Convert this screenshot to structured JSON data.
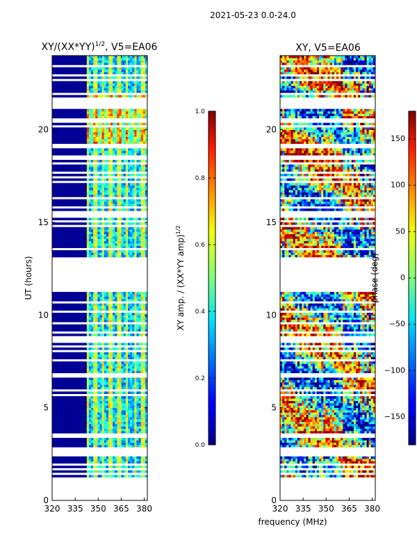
{
  "figure_title": "2021-05-23 0.0-24.0",
  "shared_xlabel": "frequency (MHz)",
  "chart_data": [
    {
      "type": "heatmap",
      "title": "XY/(XX*YY)",
      "title_exponent": "1/2",
      "title_suffix": ", V5=EA06",
      "xlabel": "frequency (MHz)",
      "ylabel": "UT (hours)",
      "xlim": [
        320,
        382
      ],
      "ylim": [
        0,
        24
      ],
      "xticks": [
        "320",
        "335",
        "350",
        "365",
        "380"
      ],
      "xtick_values": [
        320,
        335,
        350,
        365,
        380
      ],
      "yticks": [
        "0",
        "5",
        "10",
        "15",
        "20"
      ],
      "ytick_values": [
        0,
        5,
        10,
        15,
        20
      ],
      "data_freq_start": 342,
      "gaps_hours": [
        [
          0.0,
          1.2
        ],
        [
          11.3,
          12.7
        ]
      ],
      "colorbar": {
        "label": "XY amp. / (XX*YY amp)",
        "label_exponent": "1/2",
        "range": [
          0.0,
          1.0
        ],
        "ticks": [
          "0.0",
          "0.2",
          "0.4",
          "0.6",
          "0.8",
          "1.0"
        ],
        "tick_values": [
          0.0,
          0.2,
          0.4,
          0.6,
          0.8,
          1.0
        ],
        "colormap": "jet"
      }
    },
    {
      "type": "heatmap",
      "title": "XY, V5=EA06",
      "xlabel": "frequency (MHz)",
      "ylabel": "",
      "xlim": [
        320,
        382
      ],
      "ylim": [
        0,
        24
      ],
      "xticks": [
        "320",
        "335",
        "350",
        "365",
        "380"
      ],
      "xtick_values": [
        320,
        335,
        350,
        365,
        380
      ],
      "yticks": [
        "0",
        "5",
        "10",
        "15",
        "20"
      ],
      "ytick_values": [
        0,
        5,
        10,
        15,
        20
      ],
      "gaps_hours": [
        [
          0.0,
          1.2
        ],
        [
          11.3,
          12.7
        ]
      ],
      "colorbar": {
        "label": "phase (deg)",
        "range": [
          -180,
          180
        ],
        "ticks": [
          "−150",
          "−100",
          "−50",
          "0",
          "50",
          "100",
          "150"
        ],
        "tick_values": [
          -150,
          -100,
          -50,
          0,
          50,
          100,
          150
        ],
        "colormap": "jet"
      }
    }
  ]
}
